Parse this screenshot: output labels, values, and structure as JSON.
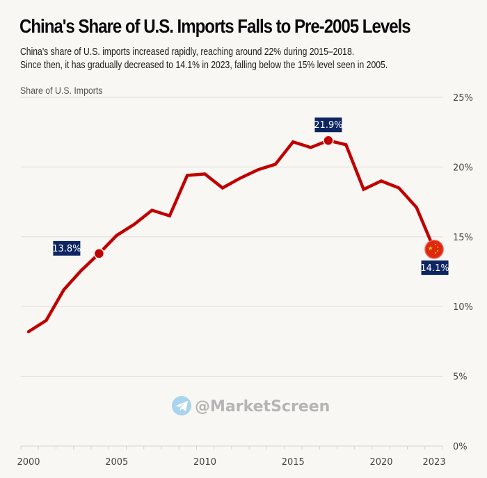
{
  "header": {
    "title": "China's Share of U.S. Imports Falls to Pre-2005 Levels",
    "subtitle_line1": "China's share of U.S. imports increased rapidly, reaching around 22% during 2015–2018.",
    "subtitle_line2": "Since then, it has gradually decreased to 14.1% in 2023, falling below the 15% level seen in 2005."
  },
  "watermark": {
    "text": "@MarketScreen",
    "icon": "telegram-icon"
  },
  "colors": {
    "line": "#c00000",
    "label_box": "#0d2561",
    "grid": "#e3e1dc",
    "background": "#f8f7f3"
  },
  "chart_data": {
    "type": "line",
    "title": "China's Share of U.S. Imports Falls to Pre-2005 Levels",
    "xlabel": "",
    "ylabel": "Share of U.S. Imports",
    "x": [
      2000,
      2001,
      2002,
      2003,
      2004,
      2005,
      2006,
      2007,
      2008,
      2009,
      2010,
      2011,
      2012,
      2013,
      2014,
      2015,
      2016,
      2017,
      2018,
      2019,
      2020,
      2021,
      2022,
      2023
    ],
    "series": [
      {
        "name": "China's share of U.S. imports (%)",
        "values": [
          8.2,
          9.0,
          11.2,
          12.6,
          13.8,
          15.1,
          15.9,
          16.9,
          16.5,
          19.4,
          19.5,
          18.5,
          19.2,
          19.8,
          20.2,
          21.8,
          21.4,
          21.9,
          21.6,
          18.4,
          19.0,
          18.5,
          17.1,
          14.1
        ]
      }
    ],
    "ylim": [
      0,
      25
    ],
    "yticks": [
      0,
      5,
      10,
      15,
      20,
      25
    ],
    "ytick_labels": [
      "0%",
      "5%",
      "10%",
      "15%",
      "20%",
      "25%"
    ],
    "xtick_labels": [
      {
        "year": 2000,
        "label": "2000"
      },
      {
        "year": 2005,
        "label": "2005"
      },
      {
        "year": 2010,
        "label": "2010"
      },
      {
        "year": 2015,
        "label": "2015"
      },
      {
        "year": 2020,
        "label": "2020"
      },
      {
        "year": 2023,
        "label": "2023"
      }
    ],
    "grid": true,
    "y_axis_side": "right",
    "annotations": [
      {
        "year": 2004,
        "value": 13.8,
        "label": "13.8%",
        "position": "above-left",
        "marker": "dot"
      },
      {
        "year": 2017,
        "value": 21.9,
        "label": "21.9%",
        "position": "above",
        "marker": "dot"
      },
      {
        "year": 2023,
        "value": 14.1,
        "label": "14.1%",
        "position": "below",
        "marker": "china-flag"
      }
    ]
  }
}
